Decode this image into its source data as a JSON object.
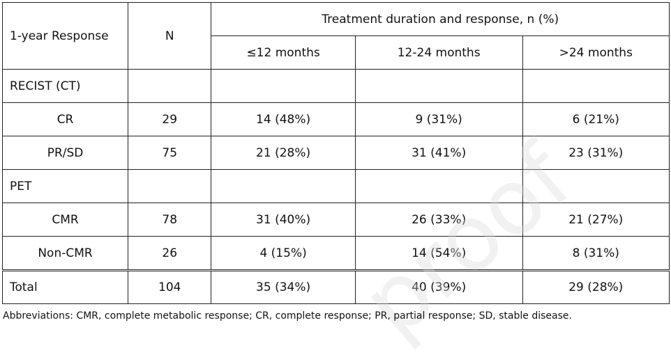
{
  "header": {
    "col_response": "1-year Response",
    "col_n": "N",
    "group_title": "Treatment duration and response, n (%)",
    "sub_cols": [
      "≤12 months",
      "12-24 months",
      ">24 months"
    ]
  },
  "sections": [
    {
      "label": "RECIST (CT)",
      "rows": [
        {
          "label": "CR",
          "n": "29",
          "c1": "14 (48%)",
          "c2": "9 (31%)",
          "c3": "6 (21%)"
        },
        {
          "label": "PR/SD",
          "n": "75",
          "c1": "21 (28%)",
          "c2": "31 (41%)",
          "c3": "23 (31%)"
        }
      ]
    },
    {
      "label": "PET",
      "rows": [
        {
          "label": "CMR",
          "n": "78",
          "c1": "31 (40%)",
          "c2": "26 (33%)",
          "c3": "21 (27%)"
        },
        {
          "label": "Non-CMR",
          "n": "26",
          "c1": "4 (15%)",
          "c2": "14 (54%)",
          "c3": "8 (31%)"
        }
      ]
    }
  ],
  "total": {
    "label": "Total",
    "n": "104",
    "c1": "35 (34%)",
    "c2": "40 (39%)",
    "c3": "29 (28%)"
  },
  "footnote": "Abbreviations: CMR, complete metabolic response; CR, complete response; PR, partial response; SD, stable disease.",
  "watermark_text": "proof"
}
